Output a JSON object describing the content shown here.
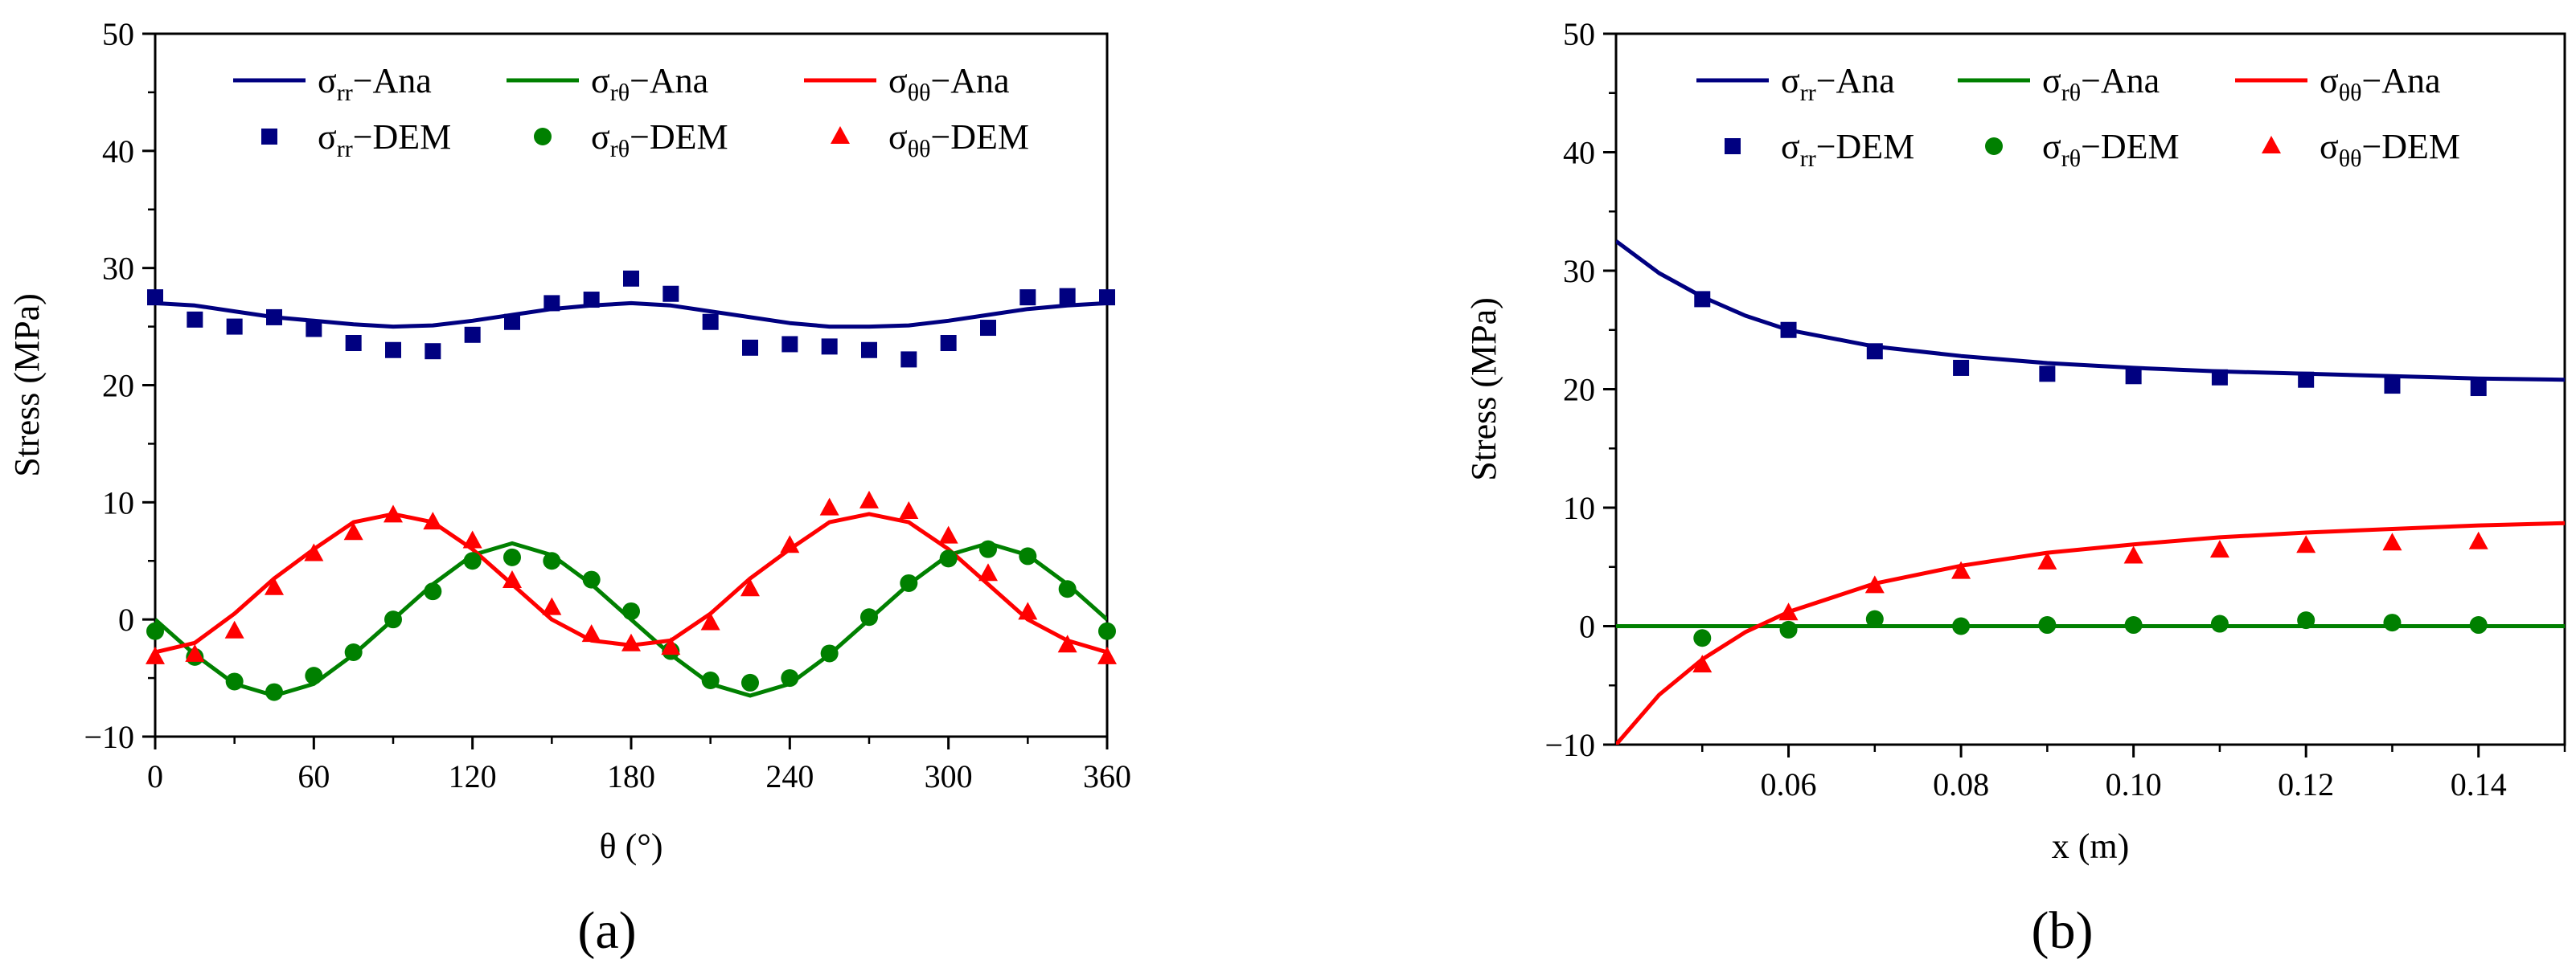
{
  "chart_data": [
    {
      "type": "line",
      "caption": "(a)",
      "xlabel": "θ (°)",
      "ylabel": "Stress (MPa)",
      "xlim": [
        0,
        360
      ],
      "ylim": [
        -10,
        50
      ],
      "xticks": [
        0,
        60,
        120,
        180,
        240,
        300,
        360
      ],
      "yticks": [
        -10,
        0,
        10,
        20,
        30,
        40,
        50
      ],
      "grid": false,
      "legend_position": "top",
      "series": [
        {
          "name": "σrr−Ana",
          "sym": "σ",
          "sub": "rr",
          "suffix": "−Ana",
          "kind": "line",
          "color": "#000080",
          "x": [
            0,
            15,
            30,
            45,
            60,
            75,
            90,
            105,
            120,
            135,
            150,
            165,
            180,
            195,
            210,
            225,
            240,
            255,
            270,
            285,
            300,
            315,
            330,
            345,
            360
          ],
          "y": [
            27.0,
            26.8,
            26.3,
            25.8,
            25.5,
            25.2,
            25.0,
            25.1,
            25.5,
            26.0,
            26.5,
            26.8,
            27.0,
            26.8,
            26.3,
            25.8,
            25.3,
            25.0,
            25.0,
            25.1,
            25.5,
            26.0,
            26.5,
            26.8,
            27.0
          ]
        },
        {
          "name": "σrθ−Ana",
          "sym": "σ",
          "sub": "rθ",
          "suffix": "−Ana",
          "kind": "line",
          "color": "#008000",
          "x": [
            0,
            15,
            30,
            45,
            60,
            75,
            90,
            105,
            120,
            135,
            150,
            165,
            180,
            195,
            210,
            225,
            240,
            255,
            270,
            285,
            300,
            315,
            330,
            345,
            360
          ],
          "y": [
            0.0,
            -3.0,
            -5.5,
            -6.5,
            -5.5,
            -3.0,
            0.0,
            3.0,
            5.5,
            6.5,
            5.5,
            3.0,
            0.0,
            -3.0,
            -5.5,
            -6.5,
            -5.5,
            -3.0,
            0.0,
            3.0,
            5.5,
            6.5,
            5.5,
            3.0,
            0.0
          ]
        },
        {
          "name": "σθθ−Ana",
          "sym": "σ",
          "sub": "θθ",
          "suffix": "−Ana",
          "kind": "line",
          "color": "#ff0000",
          "x": [
            0,
            15,
            30,
            45,
            60,
            75,
            90,
            105,
            120,
            135,
            150,
            165,
            180,
            195,
            210,
            225,
            240,
            255,
            270,
            285,
            300,
            315,
            330,
            345,
            360
          ],
          "y": [
            -2.8,
            -2.0,
            0.5,
            3.5,
            6.0,
            8.3,
            9.0,
            8.3,
            6.0,
            3.0,
            0.0,
            -1.8,
            -2.2,
            -1.8,
            0.5,
            3.5,
            6.0,
            8.3,
            9.0,
            8.3,
            6.0,
            3.0,
            0.0,
            -1.8,
            -2.8
          ]
        },
        {
          "name": "σrr−DEM",
          "sym": "σ",
          "sub": "rr",
          "suffix": "−DEM",
          "kind": "marker",
          "marker": "square",
          "color": "#000080",
          "x": [
            0,
            15,
            30,
            45,
            60,
            75,
            90,
            105,
            120,
            135,
            150,
            165,
            180,
            195,
            210,
            225,
            240,
            255,
            270,
            285,
            300,
            315,
            330,
            345,
            360
          ],
          "y": [
            27.5,
            25.6,
            25.0,
            25.8,
            24.8,
            23.6,
            23.0,
            22.9,
            24.3,
            25.4,
            27.0,
            27.3,
            29.1,
            27.8,
            25.4,
            23.2,
            23.5,
            23.3,
            23.0,
            22.2,
            23.6,
            24.9,
            27.5,
            27.6,
            27.5
          ]
        },
        {
          "name": "σrθ−DEM",
          "sym": "σ",
          "sub": "rθ",
          "suffix": "−DEM",
          "kind": "marker",
          "marker": "circle",
          "color": "#008000",
          "x": [
            0,
            15,
            30,
            45,
            60,
            75,
            90,
            105,
            120,
            135,
            150,
            165,
            180,
            195,
            210,
            225,
            240,
            255,
            270,
            285,
            300,
            315,
            330,
            345,
            360
          ],
          "y": [
            -1.0,
            -3.2,
            -5.3,
            -6.2,
            -4.8,
            -2.8,
            0.0,
            2.4,
            5.0,
            5.3,
            5.0,
            3.4,
            0.7,
            -2.7,
            -5.2,
            -5.4,
            -5.0,
            -2.9,
            0.2,
            3.1,
            5.2,
            6.0,
            5.4,
            2.6,
            -1.0
          ]
        },
        {
          "name": "σθθ−DEM",
          "sym": "σ",
          "sub": "θθ",
          "suffix": "−DEM",
          "kind": "marker",
          "marker": "triangle",
          "color": "#ff0000",
          "x": [
            0,
            15,
            30,
            45,
            60,
            75,
            90,
            105,
            120,
            135,
            150,
            165,
            180,
            195,
            210,
            225,
            240,
            255,
            270,
            285,
            300,
            315,
            330,
            345,
            360
          ],
          "y": [
            -3.2,
            -3.0,
            -1.0,
            2.7,
            5.6,
            7.4,
            8.9,
            8.3,
            6.7,
            3.3,
            1.0,
            -1.3,
            -2.1,
            -2.4,
            -0.3,
            2.6,
            6.3,
            9.5,
            10.1,
            9.2,
            7.1,
            3.9,
            0.6,
            -2.2,
            -3.2
          ]
        }
      ]
    },
    {
      "type": "line",
      "caption": "(b)",
      "xlabel": "x (m)",
      "ylabel": "Stress (MPa)",
      "xlim": [
        0.04,
        0.15
      ],
      "ylim": [
        -10,
        50
      ],
      "xticks": [
        0.06,
        0.08,
        0.1,
        0.12,
        0.14
      ],
      "xtick_labels": [
        "0.06",
        "0.08",
        "0.10",
        "0.12",
        "0.14"
      ],
      "yticks": [
        -10,
        0,
        10,
        20,
        30,
        40,
        50
      ],
      "grid": false,
      "legend_position": "top",
      "series": [
        {
          "name": "σrr−Ana",
          "sym": "σ",
          "sub": "rr",
          "suffix": "−Ana",
          "kind": "line",
          "color": "#000080",
          "x": [
            0.04,
            0.045,
            0.05,
            0.055,
            0.06,
            0.07,
            0.08,
            0.09,
            0.1,
            0.11,
            0.12,
            0.13,
            0.14,
            0.15
          ],
          "y": [
            32.5,
            29.8,
            27.8,
            26.2,
            25.0,
            23.6,
            22.8,
            22.2,
            21.8,
            21.5,
            21.3,
            21.1,
            20.9,
            20.8
          ]
        },
        {
          "name": "σrθ−Ana",
          "sym": "σ",
          "sub": "rθ",
          "suffix": "−Ana",
          "kind": "line",
          "color": "#008000",
          "x": [
            0.04,
            0.15
          ],
          "y": [
            0.0,
            0.0
          ]
        },
        {
          "name": "σθθ−Ana",
          "sym": "σ",
          "sub": "θθ",
          "suffix": "−Ana",
          "kind": "line",
          "color": "#ff0000",
          "x": [
            0.04,
            0.045,
            0.05,
            0.055,
            0.06,
            0.07,
            0.08,
            0.09,
            0.1,
            0.11,
            0.12,
            0.13,
            0.14,
            0.15
          ],
          "y": [
            -10.0,
            -5.8,
            -2.8,
            -0.5,
            1.2,
            3.6,
            5.1,
            6.2,
            6.9,
            7.5,
            7.9,
            8.2,
            8.5,
            8.7
          ]
        },
        {
          "name": "σrr−DEM",
          "sym": "σ",
          "sub": "rr",
          "suffix": "−DEM",
          "kind": "marker",
          "marker": "square",
          "color": "#000080",
          "x": [
            0.05,
            0.06,
            0.07,
            0.08,
            0.09,
            0.1,
            0.11,
            0.12,
            0.13,
            0.14
          ],
          "y": [
            27.6,
            25.0,
            23.2,
            21.8,
            21.3,
            21.1,
            21.0,
            20.8,
            20.3,
            20.1
          ]
        },
        {
          "name": "σrθ−DEM",
          "sym": "σ",
          "sub": "rθ",
          "suffix": "−DEM",
          "kind": "marker",
          "marker": "circle",
          "color": "#008000",
          "x": [
            0.05,
            0.06,
            0.07,
            0.08,
            0.09,
            0.1,
            0.11,
            0.12,
            0.13,
            0.14
          ],
          "y": [
            -1.0,
            -0.3,
            0.6,
            0.0,
            0.1,
            0.1,
            0.2,
            0.5,
            0.3,
            0.1
          ]
        },
        {
          "name": "σθθ−DEM",
          "sym": "σ",
          "sub": "θθ",
          "suffix": "−DEM",
          "kind": "marker",
          "marker": "triangle",
          "color": "#ff0000",
          "x": [
            0.05,
            0.06,
            0.07,
            0.08,
            0.09,
            0.1,
            0.11,
            0.12,
            0.13,
            0.14
          ],
          "y": [
            -3.3,
            1.1,
            3.4,
            4.6,
            5.4,
            5.9,
            6.4,
            6.8,
            7.0,
            7.1
          ]
        }
      ]
    }
  ]
}
